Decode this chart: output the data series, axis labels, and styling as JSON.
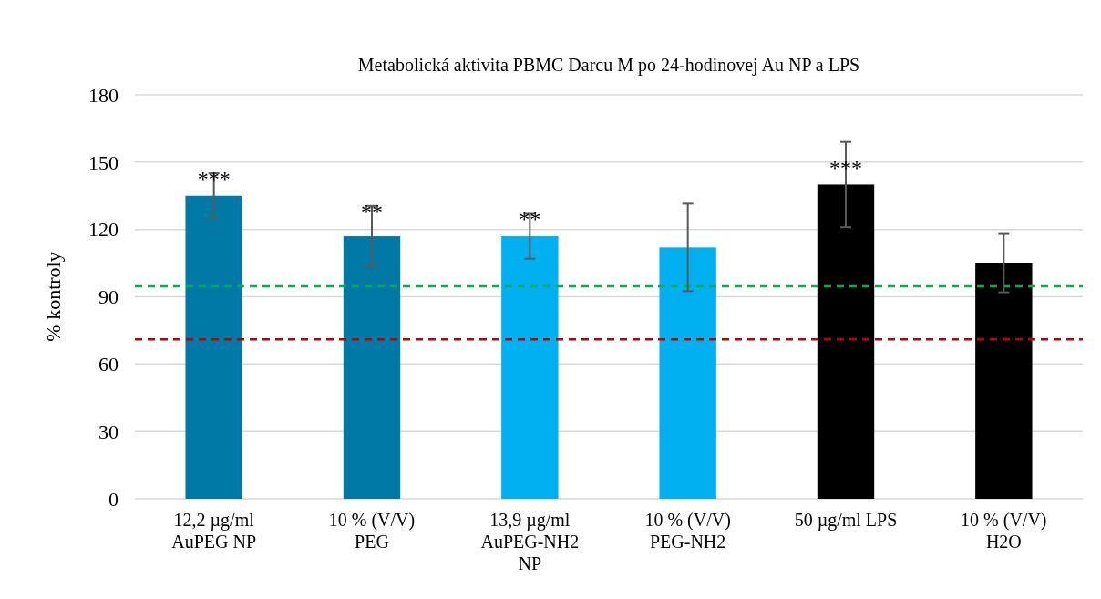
{
  "chart_data": {
    "type": "bar",
    "title": "Metabolická aktivita PBMC Darcu M po 24-hodinovej  Au NP a LPS",
    "ylabel": "% kontroly",
    "categories": [
      "12,2 µg/ml\nAuPEG NP",
      "10 % (V/V)\nPEG",
      "13,9 µg/ml\nAuPEG-NH2\nNP",
      "10 % (V/V)\nPEG-NH2",
      "50 µg/ml LPS",
      "10 % (V/V)\nH2O"
    ],
    "values": [
      135,
      117,
      117,
      112,
      140,
      105
    ],
    "errors": [
      10,
      13.5,
      10,
      19.5,
      19,
      13
    ],
    "colors": [
      "#0079a6",
      "#0079a6",
      "#00b0f0",
      "#00b0f0",
      "#000000",
      "#000000"
    ],
    "ylim": [
      0,
      180
    ],
    "yticks": [
      0,
      30,
      60,
      90,
      120,
      150,
      180
    ],
    "grid": "y",
    "ref_lines": [
      {
        "axis": "y",
        "value": 94.7,
        "color": "#00b050",
        "line_style": "dashed"
      },
      {
        "axis": "y",
        "value": 71,
        "color": "#c00000",
        "line_style": "dashed"
      }
    ],
    "annotations": [
      {
        "text": "***",
        "x": "12,2 µg/ml\nAuPEG NP",
        "y": 145
      },
      {
        "text": "**",
        "x": "10 % (V/V)\nPEG",
        "y": 130.5
      },
      {
        "text": "**",
        "x": "13,9 µg/ml\nAuPEG-NH2\nNP",
        "y": 127
      },
      {
        "text": "***",
        "x": "50 µg/ml LPS",
        "y": 150
      }
    ]
  }
}
